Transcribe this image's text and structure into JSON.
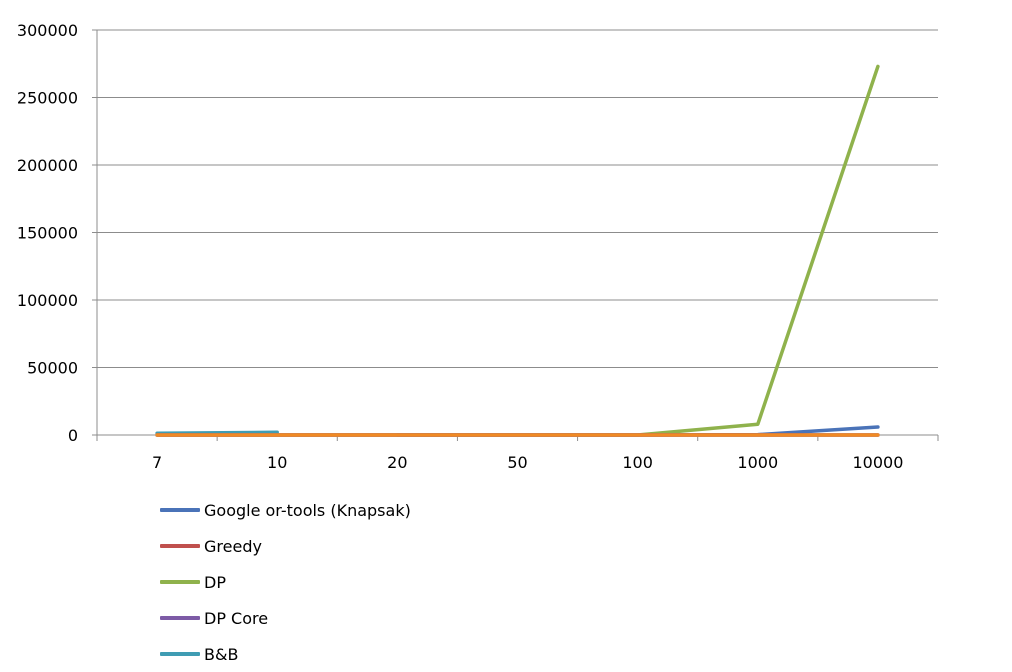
{
  "chart_data": {
    "type": "line",
    "title": "",
    "xlabel": "",
    "ylabel": "",
    "categories": [
      "7",
      "10",
      "20",
      "50",
      "100",
      "1000",
      "10000"
    ],
    "ylim": [
      0,
      300000
    ],
    "yticks": [
      0,
      50000,
      100000,
      150000,
      200000,
      250000,
      300000
    ],
    "ytick_labels": [
      "0",
      "50000",
      "100000",
      "150000",
      "200000",
      "250000",
      "300000"
    ],
    "grid": true,
    "legend_position": "bottom",
    "series": [
      {
        "name": "Google or-tools (Knapsak)",
        "color": "#4a73b8",
        "values": [
          null,
          null,
          0,
          0,
          0,
          300,
          5900
        ]
      },
      {
        "name": "Greedy",
        "color": "#c0504d",
        "values": [
          0,
          0,
          0,
          0,
          0,
          0,
          0
        ]
      },
      {
        "name": "DP",
        "color": "#8fb24c",
        "values": [
          0,
          0,
          0,
          0,
          0,
          8000,
          273000
        ]
      },
      {
        "name": "DP Core",
        "color": "#7d5ba6",
        "values": [
          0,
          0,
          0,
          0,
          0,
          0,
          0
        ]
      },
      {
        "name": "B&B",
        "color": "#3f9cb3",
        "values": [
          1300,
          2000,
          null,
          null,
          null,
          null,
          null
        ]
      },
      {
        "name": "",
        "color": "#f08a24",
        "values": [
          0,
          0,
          0,
          0,
          0,
          0,
          0
        ]
      }
    ]
  }
}
